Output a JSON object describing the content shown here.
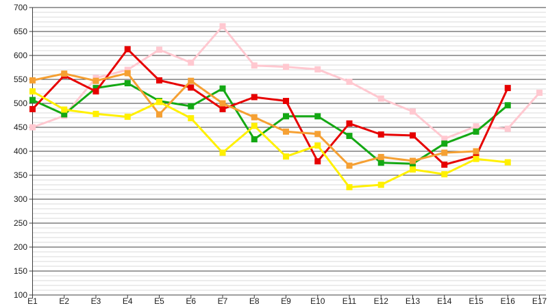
{
  "chart_data": {
    "type": "line",
    "title": "",
    "xlabel": "",
    "ylabel": "",
    "categories": [
      "E1",
      "E2",
      "E3",
      "E4",
      "E5",
      "E6",
      "E7",
      "E8",
      "E9",
      "E10",
      "E11",
      "E12",
      "E13",
      "E14",
      "E15",
      "E16",
      "E17"
    ],
    "y_ticks": [
      700,
      650,
      600,
      550,
      500,
      450,
      400,
      350,
      300,
      250,
      200,
      150,
      100
    ],
    "ylim": [
      100,
      700
    ],
    "y_major_step": 50,
    "y_minor_step": 10,
    "grid": true,
    "legend": "none",
    "marker": "square",
    "series": [
      {
        "name": "pink",
        "color": "#ffc8d0",
        "values": [
          450,
          474,
          553,
          570,
          612,
          585,
          661,
          579,
          576,
          571,
          545,
          510,
          483,
          426,
          452,
          447,
          522
        ]
      },
      {
        "name": "green",
        "color": "#14a814",
        "values": [
          507,
          477,
          532,
          542,
          505,
          494,
          531,
          425,
          473,
          473,
          432,
          376,
          374,
          416,
          441,
          496,
          null
        ]
      },
      {
        "name": "red",
        "color": "#e60000",
        "values": [
          488,
          558,
          525,
          613,
          548,
          533,
          488,
          513,
          505,
          379,
          458,
          435,
          433,
          372,
          390,
          532,
          null
        ]
      },
      {
        "name": "orange",
        "color": "#f5a033",
        "values": [
          548,
          562,
          547,
          563,
          477,
          547,
          500,
          471,
          441,
          436,
          370,
          388,
          380,
          397,
          400,
          null,
          null
        ]
      },
      {
        "name": "yellow",
        "color": "#fff000",
        "values": [
          525,
          487,
          478,
          472,
          503,
          469,
          397,
          453,
          389,
          412,
          325,
          330,
          362,
          352,
          384,
          377,
          null
        ]
      }
    ],
    "colors": {
      "major_grid": "#3c3c3c",
      "minor_grid": "#d9d9d9",
      "axis": "#3c3c3c",
      "background": "#ffffff"
    }
  }
}
